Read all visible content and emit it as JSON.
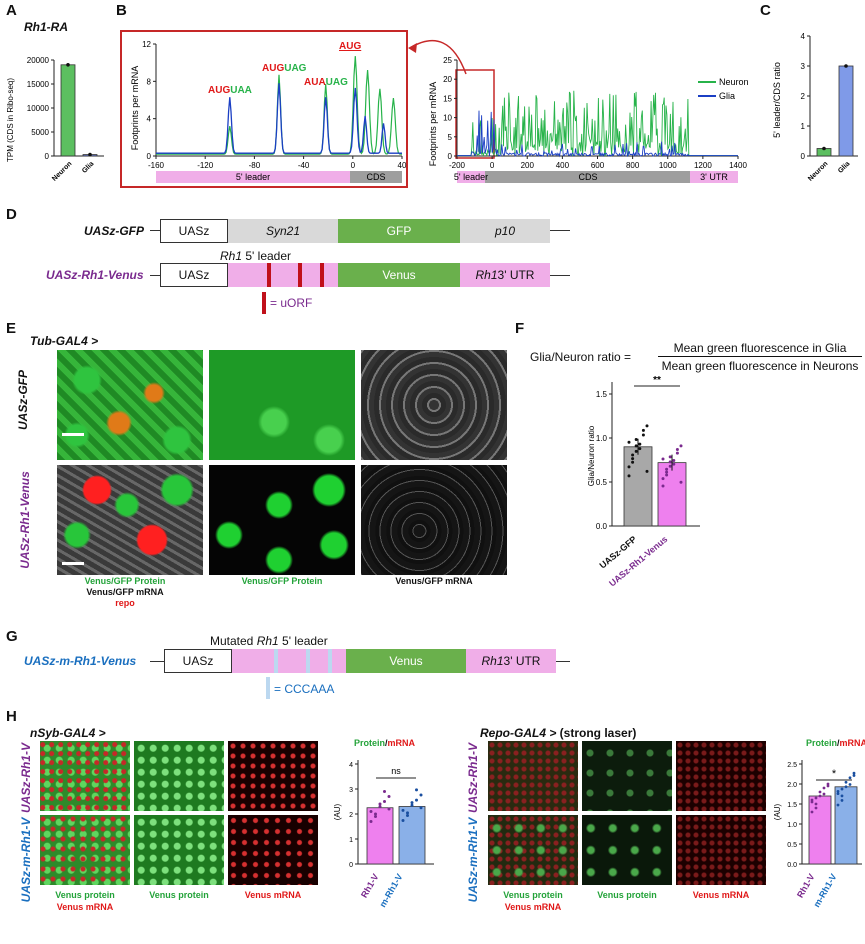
{
  "panels": {
    "A": "A",
    "B": "B",
    "C": "C",
    "D": "D",
    "E": "E",
    "F": "F",
    "G": "G",
    "H": "H"
  },
  "panelA": {
    "title": "Rh1-RA",
    "ylabel": "TPM (CDS in Ribo-seq)",
    "yticks": [
      "0",
      "5000",
      "10000",
      "15000",
      "20000"
    ],
    "bars": [
      {
        "label": "Neuron",
        "value": 19000,
        "color": "#5cbf60"
      },
      {
        "label": "Glia",
        "value": 300,
        "color": "#6b7fd6"
      }
    ]
  },
  "panelB": {
    "inset": {
      "ylabel": "Footprints per mRNA",
      "yticks": [
        "0",
        "4",
        "8",
        "12"
      ],
      "xticks": [
        "-160",
        "-120",
        "-80",
        "-40",
        "0",
        "40"
      ],
      "leader_label": "5' leader",
      "cds_label": "CDS",
      "annotations": [
        {
          "a": "AUG",
          "b": "UAA"
        },
        {
          "a": "AUG",
          "b": "UAG"
        },
        {
          "a": "AUA",
          "b": "UAG"
        },
        {
          "a": "AUG",
          "b": ""
        }
      ]
    },
    "main": {
      "ylabel": "Footprints per mRNA",
      "yticks": [
        "0",
        "5",
        "10",
        "15",
        "20",
        "25"
      ],
      "xticks": [
        "-200",
        "0",
        "200",
        "400",
        "600",
        "800",
        "1000",
        "1200",
        "1400"
      ],
      "leader_label": "5' leader",
      "cds_label": "CDS",
      "utr_label": "3' UTR",
      "legend": [
        {
          "name": "Neuron",
          "color": "#27b34a"
        },
        {
          "name": "Glia",
          "color": "#1b3fc4"
        }
      ]
    }
  },
  "panelC": {
    "ylabel": "5' leader/CDS ratio",
    "yticks": [
      "0",
      "1",
      "2",
      "3",
      "4"
    ],
    "bars": [
      {
        "label": "Neuron",
        "value": 0.25,
        "color": "#5cbf60"
      },
      {
        "label": "Glia",
        "value": 3.0,
        "color": "#7f9ae8"
      }
    ]
  },
  "panelD": {
    "construct1": {
      "name": "UASz-GFP",
      "uas": "UASz",
      "seg2": "Syn21",
      "seg3": "GFP",
      "seg4": "p10"
    },
    "construct2": {
      "name": "UASz-Rh1-Venus",
      "uas": "UASz",
      "leader_title_it": "Rh1",
      "leader_title": " 5' leader",
      "seg3": "Venus",
      "seg4_it": "Rh1",
      "seg4": " 3' UTR"
    },
    "legend": "= uORF"
  },
  "panelE": {
    "driver": "Tub-GAL4 >",
    "row1": "UASz-GFP",
    "row2": "UASz-Rh1-Venus",
    "col1": [
      "Venus/GFP Protein",
      "Venus/GFP mRNA",
      "repo"
    ],
    "col2": "Venus/GFP Protein",
    "col3": "Venus/GFP mRNA"
  },
  "panelF": {
    "formula_left": "Glia/Neuron ratio =",
    "numerator": "Mean green fluorescence in Glia",
    "denominator": "Mean green fluorescence in Neurons",
    "ylabel": "Glia/Neuron ratio",
    "yticks": [
      "0.0",
      "0.5",
      "1.0",
      "1.5"
    ],
    "sig": "**",
    "bars": [
      {
        "label": "UASz-GFP",
        "value": 0.9
      },
      {
        "label": "UASz-Rh1-Venus",
        "value": 0.72
      }
    ]
  },
  "panelG": {
    "title_pre": "Mutated ",
    "title_it": "Rh1",
    "title_post": " 5' leader",
    "name": "UASz-m-Rh1-Venus",
    "uas": "UASz",
    "seg3": "Venus",
    "seg4_it": "Rh1",
    "seg4": " 3' UTR",
    "legend": "= CCCAAA"
  },
  "panelH": {
    "left": {
      "driver": "nSyb-GAL4 >",
      "row1": "UASz-Rh1-V",
      "row2": "UASz-m-Rh1-V",
      "col1": [
        "Venus protein",
        "Venus mRNA"
      ],
      "col2": "Venus protein",
      "col3": "Venus mRNA",
      "chart": {
        "title_a": "Protein",
        "title_sep": "/",
        "title_b": "mRNA",
        "ylabel": "(AU)",
        "yticks": [
          "0",
          "1",
          "2",
          "3",
          "4"
        ],
        "sig": "ns",
        "bars": [
          {
            "label": "Rh1-V",
            "value": 2.25
          },
          {
            "label": "m-Rh1-V",
            "value": 2.3
          }
        ]
      }
    },
    "right": {
      "driver": "Repo-GAL4 >",
      "driver_note": " (strong laser)",
      "row1": "UASz-Rh1-V",
      "row2": "UASz-m-Rh1-V",
      "col1": [
        "Venus protein",
        "Venus mRNA"
      ],
      "col2": "Venus protein",
      "col3": "Venus mRNA",
      "chart": {
        "title_a": "Protein",
        "title_sep": "/",
        "title_b": "mRNA",
        "ylabel": "(AU)",
        "yticks": [
          "0.0",
          "0.5",
          "1.0",
          "1.5",
          "2.0",
          "2.5"
        ],
        "sig": "*",
        "bars": [
          {
            "label": "Rh1-V",
            "value": 1.7
          },
          {
            "label": "m-Rh1-V",
            "value": 1.93
          }
        ]
      }
    }
  },
  "chart_data": [
    {
      "type": "bar",
      "title": "Rh1-RA",
      "ylabel": "TPM (CDS in Ribo-seq)",
      "categories": [
        "Neuron",
        "Glia"
      ],
      "values": [
        19000,
        300
      ],
      "ylim": [
        0,
        20000
      ]
    },
    {
      "type": "line",
      "title": "",
      "ylabel": "Footprints per mRNA",
      "series": [
        {
          "name": "Neuron"
        },
        {
          "name": "Glia"
        }
      ],
      "xlim": [
        -200,
        1400
      ],
      "ylim": [
        0,
        25
      ]
    },
    {
      "type": "bar",
      "ylabel": "5' leader/CDS ratio",
      "categories": [
        "Neuron",
        "Glia"
      ],
      "values": [
        0.25,
        3.0
      ],
      "ylim": [
        0,
        4
      ]
    },
    {
      "type": "bar",
      "ylabel": "Glia/Neuron ratio",
      "categories": [
        "UASz-GFP",
        "UASz-Rh1-Venus"
      ],
      "values": [
        0.9,
        0.72
      ],
      "ylim": [
        0,
        1.5
      ]
    },
    {
      "type": "bar",
      "ylabel": "(AU)",
      "categories": [
        "Rh1-V",
        "m-Rh1-V"
      ],
      "values": [
        2.25,
        2.3
      ],
      "ylim": [
        0,
        4
      ]
    },
    {
      "type": "bar",
      "ylabel": "(AU)",
      "categories": [
        "Rh1-V",
        "m-Rh1-V"
      ],
      "values": [
        1.7,
        1.93
      ],
      "ylim": [
        0,
        2.5
      ]
    }
  ]
}
